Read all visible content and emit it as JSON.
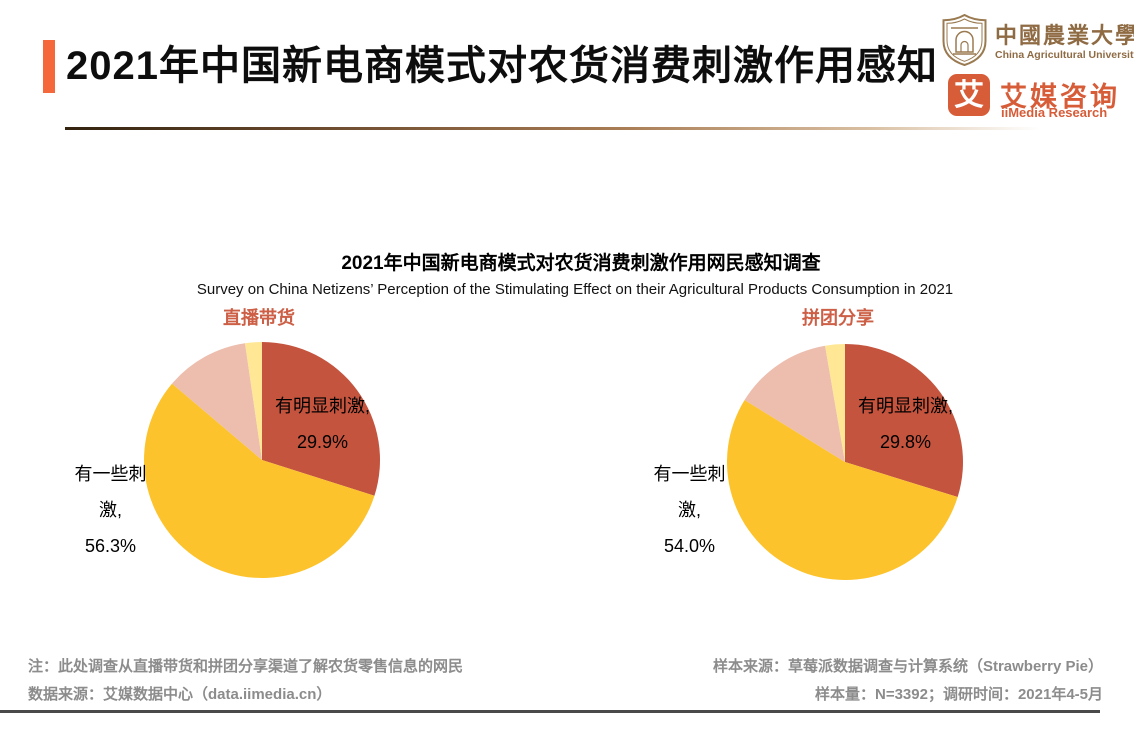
{
  "header": {
    "title": "2021年中国新电商模式对农货消费刺激作用感知",
    "logos": {
      "cau": {
        "name_cn": "中國農業大學",
        "name_en": "China Agricultural University"
      },
      "iimedia": {
        "glyph": "艾",
        "name_cn": "艾媒咨询",
        "name_en": "iiMedia Research"
      }
    }
  },
  "chart": {
    "title": "2021年中国新电商模式对农货消费刺激作用网民感知调查",
    "subtitle": "Survey on China Netizens’  Perception of the Stimulating Effect on their Agricultural Products Consumption in 2021"
  },
  "chart_data": [
    {
      "type": "pie",
      "title": "直播带货",
      "start_angle_deg": 0,
      "direction": "clockwise",
      "segments": [
        {
          "label": "有明显刺激",
          "value": 29.9,
          "color": "#C4543E",
          "data_label": "有明显刺激,\n29.9%"
        },
        {
          "label": "有一些刺激",
          "value": 56.3,
          "color": "#FCC32D",
          "data_label": "有一些刺\n激,\n56.3%"
        },
        {
          "label": "",
          "value": 11.5,
          "color": "#EDBDAE"
        },
        {
          "label": "",
          "value": 2.3,
          "color": "#FFE795"
        }
      ]
    },
    {
      "type": "pie",
      "title": "拼团分享",
      "start_angle_deg": 0,
      "direction": "clockwise",
      "segments": [
        {
          "label": "有明显刺激",
          "value": 29.8,
          "color": "#C4543E",
          "data_label": "有明显刺激,\n29.8%"
        },
        {
          "label": "有一些刺激",
          "value": 54.0,
          "color": "#FCC32D",
          "data_label": "有一些刺\n激,\n54.0%"
        },
        {
          "label": "",
          "value": 13.5,
          "color": "#EDBDAE"
        },
        {
          "label": "",
          "value": 2.7,
          "color": "#FFE795"
        }
      ]
    }
  ],
  "footer": {
    "note": "注：此处调查从直播带货和拼团分享渠道了解农货零售信息的网民",
    "data_source": "数据来源：艾媒数据中心（data.iimedia.cn）",
    "sample_source": "样本来源：草莓派数据调查与计算系统（Strawberry Pie）",
    "sample_info": "样本量：N=3392；调研时间：2021年4-5月"
  },
  "colors": {
    "accent_orange": "#F4683C",
    "heading_red": "#CC5F45",
    "pie_red": "#C4543E",
    "pie_yellow": "#FCC32D",
    "pie_pink": "#EDBDAE",
    "pie_pale_yellow": "#FFE795",
    "footer_gray": "#8C8C8C",
    "logo_brown": "#8F6B44",
    "logo_orange": "#D75C38"
  }
}
